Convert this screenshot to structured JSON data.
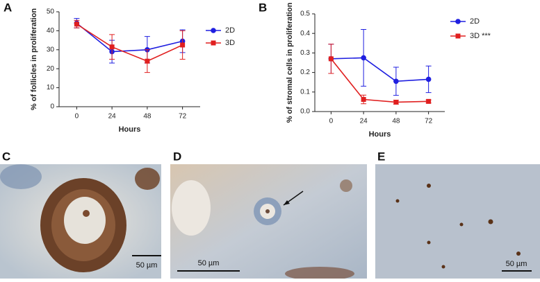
{
  "chart_data": [
    {
      "type": "line",
      "panel": "A",
      "xlabel": "Hours",
      "ylabel": "% of follicles in proliferation",
      "x": [
        0,
        24,
        48,
        72
      ],
      "xlim": [
        -12,
        84
      ],
      "xticks": [
        0,
        24,
        48,
        72
      ],
      "ylim": [
        0,
        50
      ],
      "yticks": [
        0,
        10,
        20,
        30,
        40,
        50
      ],
      "legend": "right",
      "series": [
        {
          "name": "2D",
          "color": "#1f1fe0",
          "marker": "circle",
          "values": [
            44,
            29,
            30,
            34.5
          ],
          "errors": [
            2.5,
            6,
            7,
            6
          ]
        },
        {
          "name": "3D",
          "color": "#e01f1f",
          "marker": "square",
          "values": [
            43.5,
            31.5,
            24,
            32.5
          ],
          "errors": [
            2,
            6.5,
            6,
            7.5
          ]
        }
      ]
    },
    {
      "type": "line",
      "panel": "B",
      "xlabel": "Hours",
      "ylabel": "% of stromal cells in proliferation",
      "x": [
        0,
        24,
        48,
        72
      ],
      "xlim": [
        -12,
        84
      ],
      "xticks": [
        0,
        24,
        48,
        72
      ],
      "ylim": [
        0,
        0.5
      ],
      "yticks": [
        {
          "value": 0,
          "label": "0.0"
        },
        0.1,
        0.2,
        0.3,
        0.4,
        0.5
      ],
      "legend": "right",
      "series": [
        {
          "name": "2D",
          "color": "#1f1fe0",
          "marker": "circle",
          "values": [
            0.27,
            0.275,
            0.155,
            0.165
          ],
          "errors": [
            0.075,
            0.145,
            0.072,
            0.068
          ]
        },
        {
          "name": "3D ***",
          "color": "#e01f1f",
          "marker": "square",
          "values": [
            0.27,
            0.062,
            0.048,
            0.052
          ],
          "errors": [
            0.075,
            0.022,
            0.01,
            0.008
          ]
        }
      ]
    }
  ],
  "images": [
    {
      "panel": "C",
      "scale_bar": "50 µm"
    },
    {
      "panel": "D",
      "scale_bar": "50 µm"
    },
    {
      "panel": "E",
      "scale_bar": "50 µm"
    }
  ]
}
